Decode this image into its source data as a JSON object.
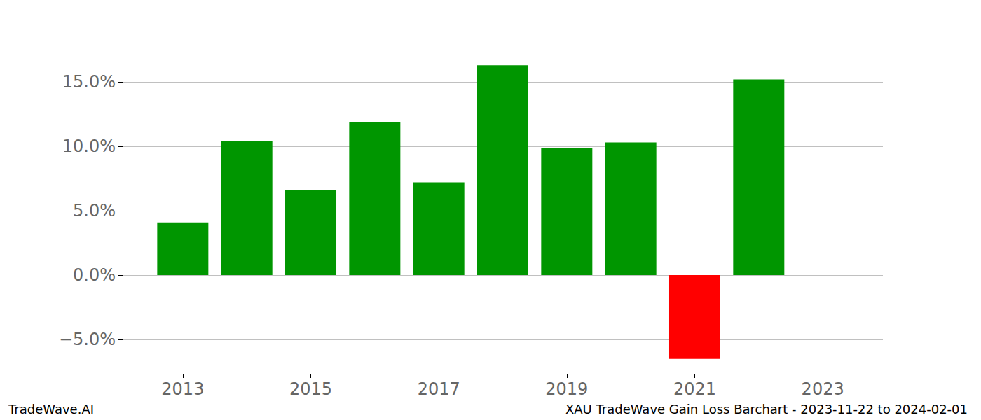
{
  "chart_data": {
    "type": "bar",
    "title": "XAU TradeWave Gain Loss Barchart - 2023-11-22 to 2024-02-01",
    "annotation": "TradeWave.AI",
    "x": [
      2013,
      2014,
      2015,
      2016,
      2017,
      2018,
      2019,
      2020,
      2021,
      2022
    ],
    "values": [
      4.1,
      10.4,
      6.6,
      11.9,
      7.2,
      16.3,
      9.9,
      10.3,
      -6.5,
      15.2
    ],
    "colors": [
      "#009600",
      "#009600",
      "#009600",
      "#009600",
      "#009600",
      "#009600",
      "#009600",
      "#009600",
      "#ff0000",
      "#009600"
    ],
    "xlim": [
      2012.06,
      2023.94
    ],
    "xticks": [
      2013,
      2015,
      2017,
      2019,
      2021,
      2023
    ],
    "ylim": [
      -7.66,
      17.45
    ],
    "yticks": [
      {
        "value": -5,
        "label": "−5.0%"
      },
      {
        "value": 0,
        "label": "0.0%"
      },
      {
        "value": 5,
        "label": "5.0%"
      },
      {
        "value": 10,
        "label": "10.0%"
      },
      {
        "value": 15,
        "label": "15.0%"
      }
    ],
    "grid": true
  }
}
